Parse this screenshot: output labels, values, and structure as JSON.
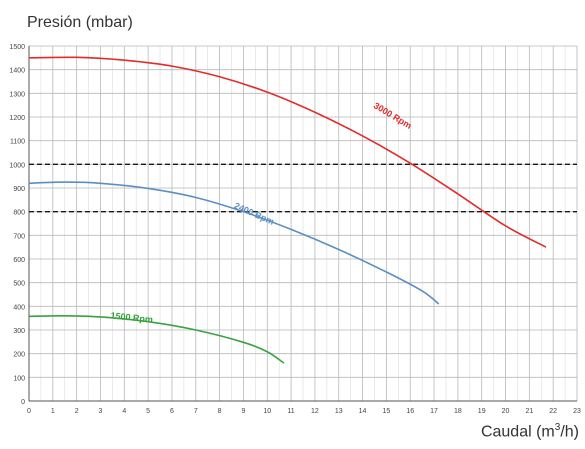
{
  "chart_data": {
    "type": "line",
    "ylabel": "Presión (mbar)",
    "xlabel_main": "Caudal (m",
    "xlabel_sup": "3",
    "xlabel_end": "/h)",
    "xlim": [
      0,
      23
    ],
    "ylim": [
      0,
      1500
    ],
    "x_ticks": [
      "0",
      "1",
      "2",
      "3",
      "4",
      "5",
      "6",
      "7",
      "8",
      "9",
      "10",
      "11",
      "12",
      "13",
      "14",
      "15",
      "16",
      "17",
      "18",
      "19",
      "20",
      "21",
      "22",
      "23"
    ],
    "y_ticks": [
      "0",
      "100",
      "200",
      "300",
      "400",
      "500",
      "600",
      "700",
      "800",
      "900",
      "1000",
      "1100",
      "1200",
      "1300",
      "1400",
      "1500"
    ],
    "grid": true,
    "reference_lines": [
      1000,
      800
    ],
    "series": [
      {
        "name": "3000 Rpm",
        "color": "#e32b2b",
        "points": [
          [
            0,
            1450
          ],
          [
            2,
            1452
          ],
          [
            4,
            1440
          ],
          [
            6,
            1415
          ],
          [
            8,
            1370
          ],
          [
            10,
            1305
          ],
          [
            12,
            1220
          ],
          [
            14,
            1120
          ],
          [
            16,
            1005
          ],
          [
            18,
            875
          ],
          [
            20,
            740
          ],
          [
            21.7,
            650
          ]
        ]
      },
      {
        "name": "2400 Bpm",
        "color": "#5b8fc2",
        "points": [
          [
            0,
            920
          ],
          [
            1.5,
            925
          ],
          [
            3,
            920
          ],
          [
            5,
            898
          ],
          [
            7,
            860
          ],
          [
            9,
            800
          ],
          [
            11,
            725
          ],
          [
            13,
            640
          ],
          [
            15,
            545
          ],
          [
            16.5,
            465
          ],
          [
            17.2,
            410
          ]
        ]
      },
      {
        "name": "1500 Rpm",
        "color": "#3aa143",
        "points": [
          [
            0,
            358
          ],
          [
            1.5,
            360
          ],
          [
            3,
            355
          ],
          [
            5,
            335
          ],
          [
            7,
            300
          ],
          [
            9,
            248
          ],
          [
            10,
            208
          ],
          [
            10.7,
            160
          ]
        ]
      }
    ]
  }
}
